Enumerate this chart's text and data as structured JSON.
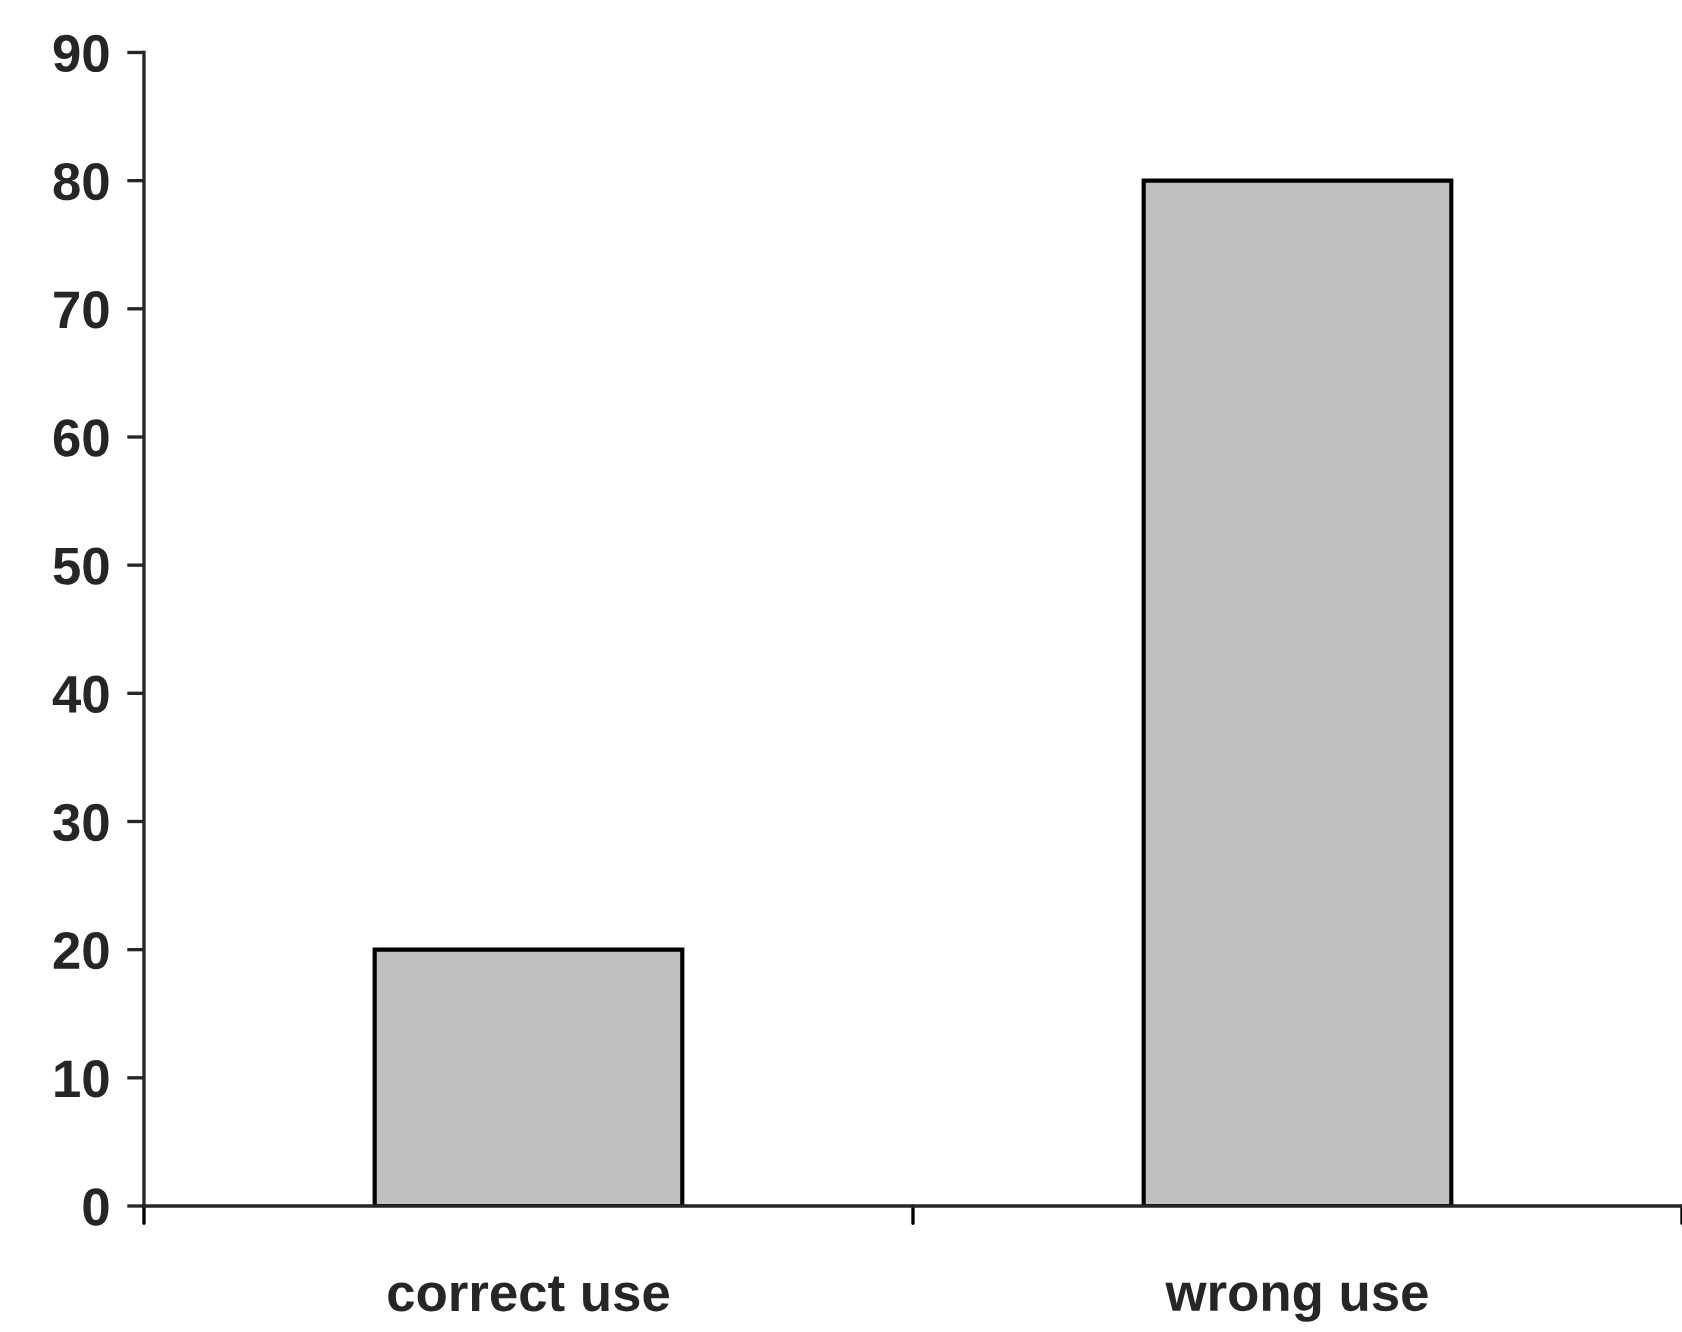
{
  "chart_data": {
    "type": "bar",
    "categories": [
      "correct use",
      "wrong use"
    ],
    "values": [
      20,
      80
    ],
    "color": "#c0c0c0",
    "ylim": [
      0,
      90
    ],
    "yticks": [
      0,
      10,
      20,
      30,
      40,
      50,
      60,
      70,
      80,
      90
    ],
    "grid": false,
    "legend": false
  }
}
